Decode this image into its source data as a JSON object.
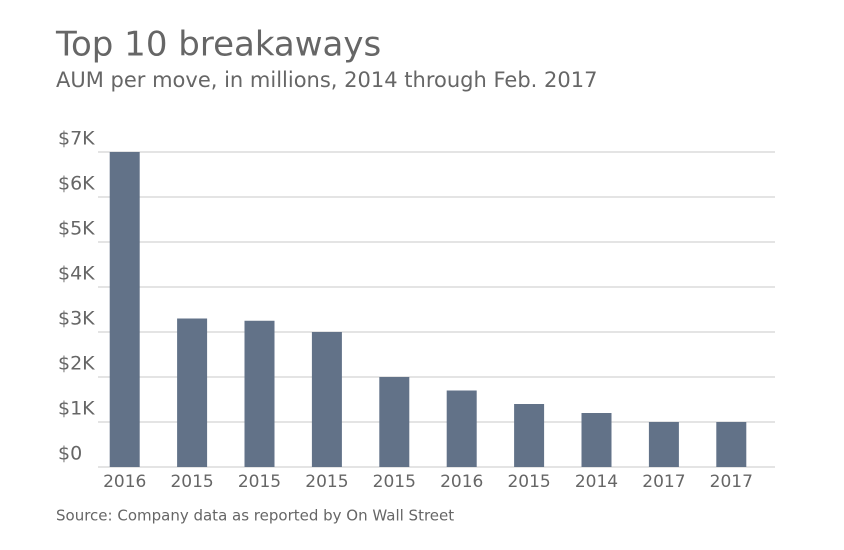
{
  "chart_data": {
    "type": "bar",
    "title": "Top 10 breakaways",
    "subtitle": "AUM per move, in millions, 2014 through Feb. 2017",
    "source": "Source: Company data as reported by On Wall Street",
    "categories": [
      "2016",
      "2015",
      "2015",
      "2015",
      "2015",
      "2016",
      "2015",
      "2014",
      "2017",
      "2017"
    ],
    "values": [
      7000,
      3300,
      3250,
      3000,
      2000,
      1700,
      1400,
      1200,
      1000,
      1000
    ],
    "color": "#627288",
    "ylim": [
      0,
      7000
    ],
    "yticks": [
      {
        "value": 0,
        "label": "$0"
      },
      {
        "value": 1000,
        "label": "$1K"
      },
      {
        "value": 2000,
        "label": "$2K"
      },
      {
        "value": 3000,
        "label": "$3K"
      },
      {
        "value": 4000,
        "label": "$4K"
      },
      {
        "value": 5000,
        "label": "$5K"
      },
      {
        "value": 6000,
        "label": "$6K"
      },
      {
        "value": 7000,
        "label": "$7K"
      }
    ],
    "grid": true
  }
}
